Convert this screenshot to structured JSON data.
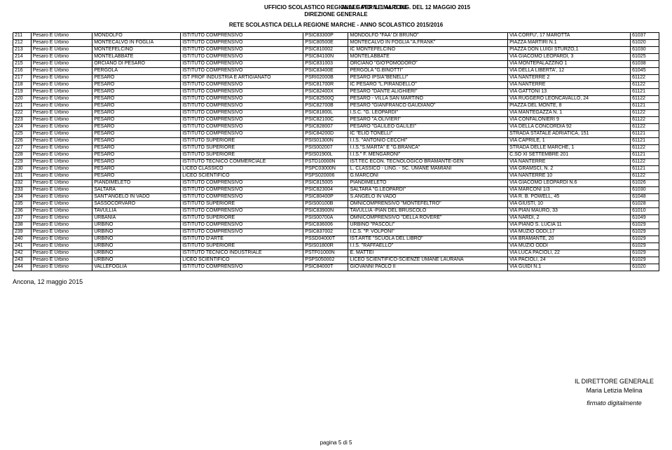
{
  "header": {
    "line1": "UFFICIO SCOLASTICO REGIONALE PER LE MARCHE",
    "line2": "DIREZIONE GENERALE",
    "allegato": "ALLEGATO N. 1 AL D.D.G. DEL 12 MAGGIO 2015",
    "subtitle": "RETE SCOLASTICA DELLA REGIONE MARCHE  -  ANNO SCOLASTICO 2015/2016"
  },
  "footer": {
    "date": "Ancona, 12 maggio 2015",
    "sig_title": "IL DIRETTORE GENERALE",
    "sig_name": "Maria Letizia Melina",
    "sig_note": "firmato digitalmente",
    "page": "pagina 5 di 5"
  },
  "rows": [
    [
      "211",
      "Pesaro E Urbino",
      "MONDOLFO",
      "ISTITUTO COMPRENSIVO",
      "PSIC83300P",
      "MONDOLFO \"FAA' DI BRUNO\"",
      "VIA CORFU', 17 MAROTTA",
      "61037"
    ],
    [
      "212",
      "Pesaro E Urbino",
      "MONTECALVO IN FOGLIA",
      "ISTITUTO COMPRENSIVO",
      "PSIC80500E",
      "MONTECALVO IN FOGLIA \"A.FRANK\"",
      "PIAZZA     MARTIRI   N.1",
      "61020"
    ],
    [
      "213",
      "Pesaro E Urbino",
      "MONTEFELCINO",
      "ISTITUTO COMPRENSIVO",
      "PSIC810002",
      "IC MONTEFELCINO",
      "PIAZZA DON LUIGI STURZO,1",
      "61030"
    ],
    [
      "214",
      "Pesaro E Urbino",
      "MONTELABBATE",
      "ISTITUTO COMPRENSIVO",
      "PSIC84100N",
      "MONTELABBATE",
      "VIA GIACOMO LEOPARDI, 3",
      "61025"
    ],
    [
      "215",
      "Pesaro E Urbino",
      "ORCIANO DI PESARO",
      "ISTITUTO COMPRENSIVO",
      "PSIC831003",
      "ORCIANO \"GIO'POMODORO\"",
      "VIA     MONTEPALAZZINO  1",
      "61038"
    ],
    [
      "216",
      "Pesaro E Urbino",
      "PERGOLA",
      "ISTITUTO COMPRENSIVO",
      "PSIC83400E",
      "PERGOLA \"G.BINOTTI\"",
      "VIA DELLA LIBERTA', 12",
      "61045"
    ],
    [
      "217",
      "Pesaro E Urbino",
      "PESARO",
      "IST PROF INDUSTRIA E ARTIGIANATO",
      "PSRI02000B",
      "PESARO IPSIA\"BENELLI\"",
      "VIA    NANTERRE  2",
      "61122"
    ],
    [
      "218",
      "Pesaro E Urbino",
      "PESARO",
      "ISTITUTO COMPRENSIVO",
      "PSIC81700R",
      "IC PESARO \"L.PIRANDELLO\"",
      "VIA NANTERRE",
      "61122"
    ],
    [
      "219",
      "Pesaro E Urbino",
      "PESARO",
      "ISTITUTO COMPRENSIVO",
      "PSIC82400X",
      "PESARO \"DANTE ALIGHIERI\"",
      "VIA       GATTONI       13",
      "61121"
    ],
    [
      "220",
      "Pesaro E Urbino",
      "PESARO",
      "ISTITUTO COMPRENSIVO",
      "PSIC82500Q",
      "PESARO - VILLA SAN MARTINO",
      "VIA RUGGERO LEONCAVALLO, 24",
      "61122"
    ],
    [
      "221",
      "Pesaro E Urbino",
      "PESARO",
      "ISTITUTO COMPRENSIVO",
      "PSIC82700B",
      "PESARO \"GIANFRANCO GAUDIANO\"",
      "PIAZZA DEL MONTE, 8",
      "61121"
    ],
    [
      "222",
      "Pesaro E Urbino",
      "PESARO",
      "ISTITUTO COMPRENSIVO",
      "PSIC81800L",
      "I.S.C. \"G. LEOPARDI\"",
      "VIA MANTEGAZZA N. 1",
      "61122"
    ],
    [
      "223",
      "Pesaro E Urbino",
      "PESARO",
      "ISTITUTO COMPRENSIVO",
      "PSIC82100C",
      "PESARO \"A.OLIVIERI\"",
      "VIA   CONFALONIERI       9",
      "61122"
    ],
    [
      "224",
      "Pesaro E Urbino",
      "PESARO",
      "ISTITUTO COMPRENSIVO",
      "PSIC828007",
      "PESARO \"GALILEO GALILEI\"",
      "VIA  DELLA CONCORDIA  92",
      "61122"
    ],
    [
      "225",
      "Pesaro E Urbino",
      "PESARO",
      "ISTITUTO COMPRENSIVO",
      "PSIC84200D",
      "IC \"ELIO TONELLI\"",
      "STRADA STATALE ADRIATICA, 151",
      "61121"
    ],
    [
      "226",
      "Pesaro E Urbino",
      "PESARO",
      "ISTITUTO SUPERIORE",
      "PSIS01300N",
      "I.I.S. \"ANTONIO CECCHI\"",
      "VIA CAPRILE, 1",
      "61121"
    ],
    [
      "227",
      "Pesaro E Urbino",
      "PESARO",
      "ISTITUTO SUPERIORE",
      "PSIS002007",
      "I.I.S.\"S.MARTA\" E \"G.BRANCA\"",
      "STRADA DELLE MARCHE, 1",
      "61122"
    ],
    [
      "228",
      "Pesaro E Urbino",
      "PESARO",
      "ISTITUTO SUPERIORE",
      "PSIS01900L",
      "I.I.S.\" F. MENGARONI\"",
      "C.SO XI SETTEMBRE 201",
      "61121"
    ],
    [
      "229",
      "Pesaro E Urbino",
      "PESARO",
      "ISTITUTO TECNICO COMMERCIALE",
      "PSTD10000N",
      "IST.TEC ECON. TECNOLOGICO BRAMANTE-GEN",
      "VIA NANTERRE",
      "61122"
    ],
    [
      "230",
      "Pesaro E Urbino",
      "PESARO",
      "LICEO CLASSICO",
      "PSPC03000N",
      "L. CLASSICO - LING. - SC. UMANE MAMIANI",
      "VIA   GRAMSCI, N. 2",
      "61121"
    ],
    [
      "231",
      "Pesaro E Urbino",
      "PESARO",
      "LICEO SCIENTIFICO",
      "PSPS020006",
      "G.MARCONI",
      "VIA   NANTERRE  10",
      "61122"
    ],
    [
      "232",
      "Pesaro E Urbino",
      "PIANDIMELETO",
      "ISTITUTO COMPRENSIVO",
      "PSIC815005",
      "PIANDIMELETO",
      "VIA GIACOMO LEOPARDI N.6",
      "61026"
    ],
    [
      "233",
      "Pesaro E Urbino",
      "SALTARA",
      "ISTITUTO COMPRENSIVO",
      "PSIC823004",
      "SALTARA \"G.LEOPARDI\"",
      "VIA MARCONI 1/3",
      "61030"
    ],
    [
      "234",
      "Pesaro E Urbino",
      "SANT'ANGELO IN VADO",
      "ISTITUTO COMPRENSIVO",
      "PSIC80400P",
      "S.ANGELO IN VADO",
      "VIA R. B. POWELL, 45",
      "61048"
    ],
    [
      "235",
      "Pesaro E Urbino",
      "SASSOCORVARO",
      "ISTITUTO SUPERIORE",
      "PSIS00100B",
      "OMNICOMPRENSIVO \"MONTEFELTRO\"",
      "VIA  GIUSTI, 10",
      "61028"
    ],
    [
      "236",
      "Pesaro E Urbino",
      "TAVULLIA",
      "ISTITUTO COMPRENSIVO",
      "PSIC83900N",
      "TAVULLIA -PIAN DEL BRUSCOLO",
      "VIA PIAN MAURO, 33",
      "61010"
    ],
    [
      "237",
      "Pesaro E Urbino",
      "URBANIA",
      "ISTITUTO SUPERIORE",
      "PSIS00700A",
      "OMNICOMPRENSIVO \"DELLA  ROVERE\"",
      "VIA NARDI, 2",
      "61049"
    ],
    [
      "238",
      "Pesaro E Urbino",
      "URBINO",
      "ISTITUTO COMPRENSIVO",
      "PSIC836006",
      "URBINO \"PASCOLI\"",
      "VIA PIANO S. LUCIA 11",
      "61029"
    ],
    [
      "239",
      "Pesaro E Urbino",
      "URBINO",
      "ISTITUTO COMPRENSIVO",
      "PSIC837002",
      "I.C.S. \"P. VOLPONI\"",
      "VIA MUZIO  ODDI,17",
      "61029"
    ],
    [
      "240",
      "Pesaro E Urbino",
      "URBINO",
      "ISTITUTO D'ARTE",
      "PSSD04000T",
      "IST.ARTE \"SCUOLA DEL LIBRO\"",
      "VIA       BRAMANTE, 20",
      "61029"
    ],
    [
      "241",
      "Pesaro E Urbino",
      "URBINO",
      "ISTITUTO SUPERIORE",
      "PSIS01800R",
      "I.I.S. \"RAFFAELLO\"",
      "VIA MUZIO ODDI",
      "61029"
    ],
    [
      "242",
      "Pesaro E Urbino",
      "URBINO",
      "ISTITUTO TECNICO INDUSTRIALE",
      "PSTF01000N",
      "E. MATTEI",
      "VIA LUCA PACIOLI, 22",
      "61029"
    ],
    [
      "243",
      "Pesaro E Urbino",
      "URBINO",
      "LICEO SCIENTIFICO",
      "PSPS050002",
      "LICEO SCIENTIFICO-SCIENZE UMANE LAURANA",
      "VIA PACIOLI, 24",
      "61029"
    ],
    [
      "244",
      "Pesaro E Urbino",
      "VALLEFOGLIA",
      "ISTITUTO COMPRENSIVO",
      "PSIC84000T",
      "GIOVANNI PAOLO II",
      "VIA GUIDI N.1",
      "61020"
    ]
  ]
}
